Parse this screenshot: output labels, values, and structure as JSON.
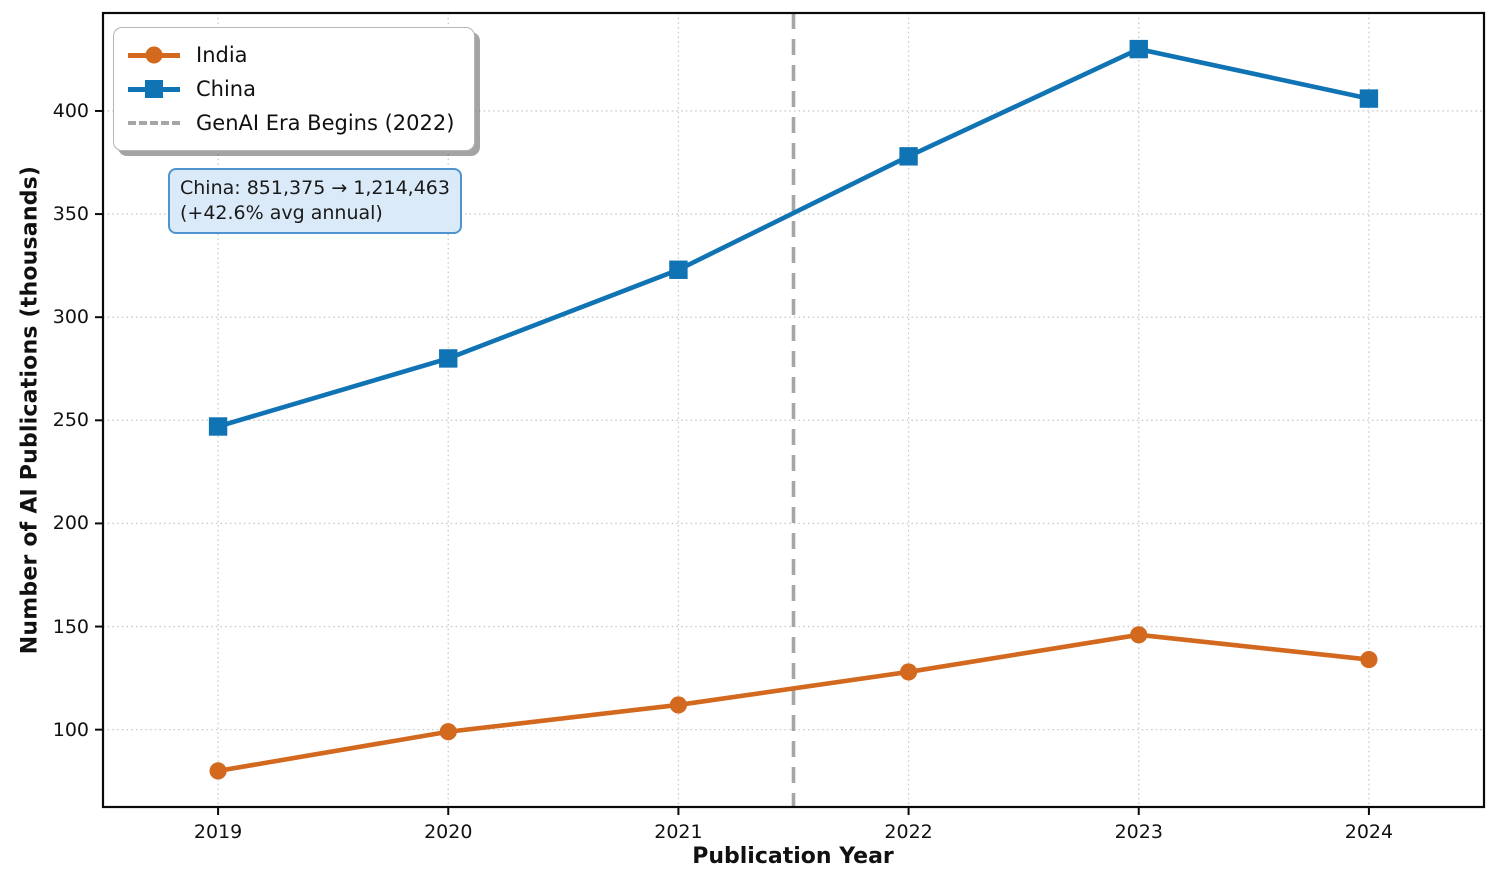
{
  "chart_data": {
    "type": "line",
    "title": "",
    "xlabel": "Publication Year",
    "ylabel": "Number of AI Publications (thousands)",
    "x": [
      2019,
      2020,
      2021,
      2022,
      2023,
      2024
    ],
    "xlim": [
      2018.5,
      2024.5
    ],
    "ylim": [
      62.5,
      447.5
    ],
    "yticks": [
      100,
      150,
      200,
      250,
      300,
      350,
      400
    ],
    "grid": "dotted",
    "legend_position": "upper-left",
    "series": [
      {
        "name": "India",
        "color": "#d2691e",
        "marker": "circle",
        "values": [
          80,
          99,
          112,
          128,
          146,
          134
        ]
      },
      {
        "name": "China",
        "color": "#1073b4",
        "marker": "square",
        "values": [
          247,
          280,
          323,
          378,
          430,
          406
        ]
      }
    ],
    "vline": {
      "x": 2021.5,
      "label": "GenAI Era Begins (2022)",
      "color": "#a6a6a6",
      "style": "dashed"
    },
    "annotation": {
      "line1": "China: 851,375 → 1,214,463",
      "line2": "(+42.6% avg annual)",
      "fill": "#dbeaf8",
      "border": "#4d94d0"
    }
  }
}
